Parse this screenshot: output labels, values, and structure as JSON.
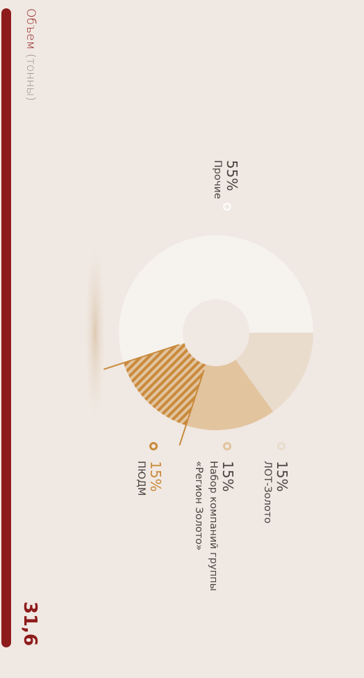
{
  "header": {
    "title": "Объем",
    "unit": "(тонны)",
    "value": "31,6"
  },
  "chart_data": {
    "type": "pie",
    "categories": [
      "Прочие",
      "ЛОТ-Золото",
      "Набор компаний группы «Регион Золото»",
      "ПЮДМ"
    ],
    "values": [
      55,
      15,
      15,
      15
    ],
    "value_labels": [
      "55%",
      "15%",
      "15%",
      "15%"
    ],
    "colors": [
      "#f6f2ee",
      "#e9dccd",
      "#e2c49f",
      "#c98a3c"
    ],
    "hatched": [
      false,
      false,
      false,
      true
    ],
    "donut": true
  }
}
